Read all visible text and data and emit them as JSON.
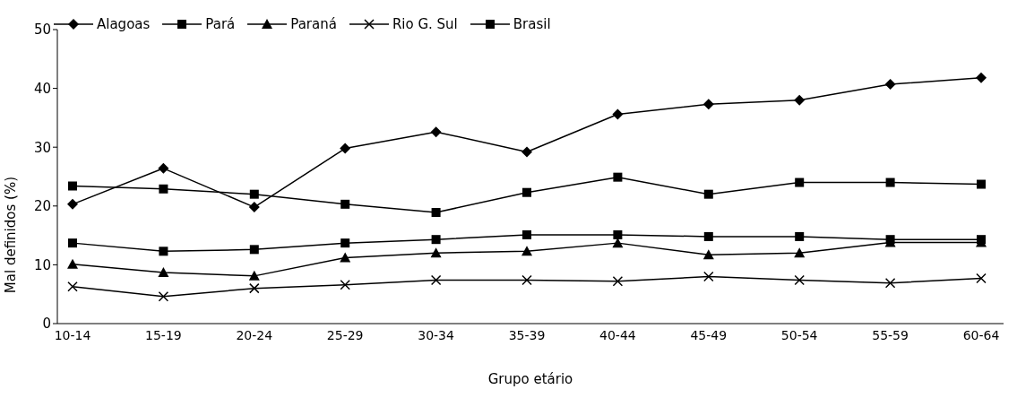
{
  "chart_data": {
    "type": "line",
    "xlabel": "Grupo etário",
    "ylabel": "Mal definidos (%)",
    "categories": [
      "10-14",
      "15-19",
      "20-24",
      "25-29",
      "30-34",
      "35-39",
      "40-44",
      "45-49",
      "50-54",
      "55-59",
      "60-64"
    ],
    "ylim": [
      0,
      50
    ],
    "yticks": [
      0,
      10,
      20,
      30,
      40,
      50
    ],
    "grid": false,
    "legend": "top left",
    "line_style": "solid",
    "series": [
      {
        "name": "Alagoas",
        "color": "#000000",
        "marker": "diamond",
        "values": [
          20.3,
          26.4,
          19.8,
          29.8,
          32.6,
          29.2,
          35.6,
          37.3,
          38,
          40.7,
          41.8
        ]
      },
      {
        "name": "Pará",
        "color": "#000000",
        "marker": "square",
        "values": [
          23.4,
          22.9,
          22,
          20.3,
          18.9,
          22.3,
          24.9,
          22,
          24,
          24,
          23.7
        ]
      },
      {
        "name": "Paraná",
        "color": "#000000",
        "marker": "triangle",
        "values": [
          10.1,
          8.7,
          8.1,
          11.2,
          12,
          12.3,
          13.7,
          11.7,
          12,
          13.8,
          13.8
        ]
      },
      {
        "name": "Rio G. Sul",
        "color": "#000000",
        "marker": "cross",
        "values": [
          6.3,
          4.6,
          6,
          6.6,
          7.4,
          7.4,
          7.2,
          8,
          7.4,
          6.9,
          7.7
        ]
      },
      {
        "name": "Brasil",
        "color": "#000000",
        "marker": "square",
        "values": [
          13.7,
          12.3,
          12.6,
          13.7,
          14.3,
          15.1,
          15.1,
          14.8,
          14.8,
          14.3,
          14.3
        ]
      }
    ]
  }
}
